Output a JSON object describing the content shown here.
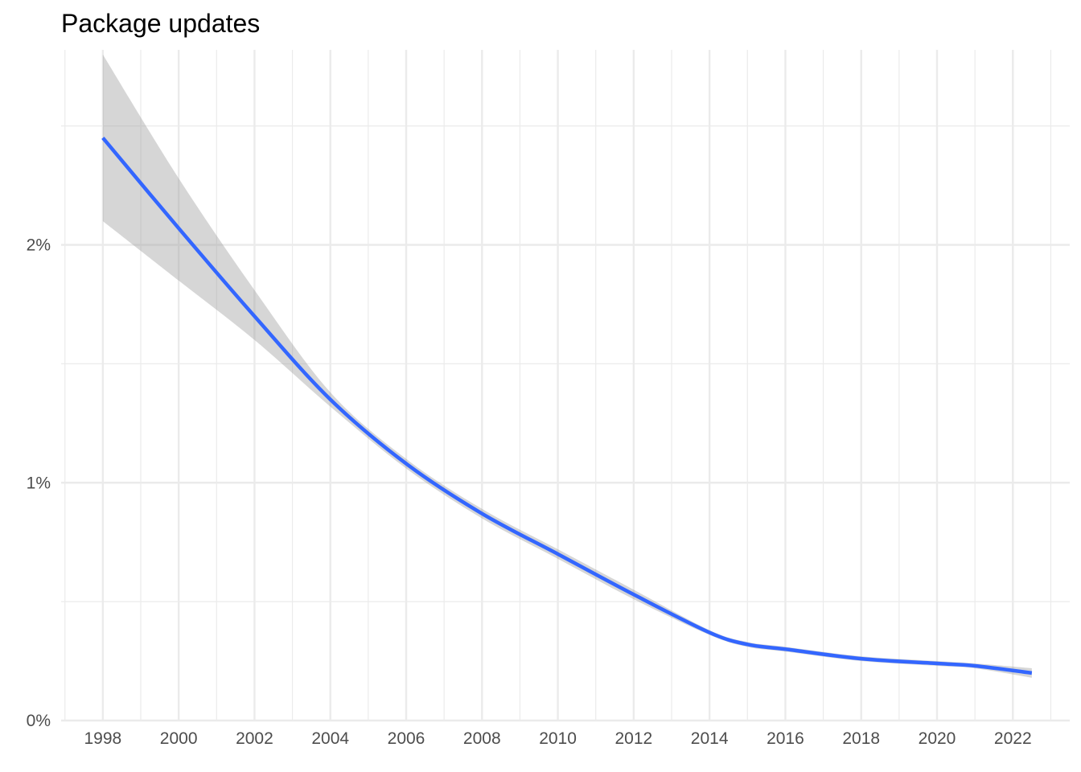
{
  "chart_data": {
    "type": "line",
    "title": "Package updates",
    "xlabel": "",
    "ylabel": "",
    "x_range": [
      1996.9,
      2023.5
    ],
    "y_range": [
      0,
      2.82
    ],
    "x_ticks": [
      1998,
      2000,
      2002,
      2004,
      2006,
      2008,
      2010,
      2012,
      2014,
      2016,
      2018,
      2020,
      2022
    ],
    "y_ticks": [
      0,
      1,
      2
    ],
    "y_tick_labels": [
      "0%",
      "1%",
      "2%"
    ],
    "y_minor_ticks": [
      0.5,
      1.5,
      2.5
    ],
    "grid": true,
    "legend": "none",
    "colors": {
      "line": "#3366FF",
      "band": "#999999",
      "grid": "#ebebeb"
    },
    "series": [
      {
        "x": [
          1998,
          2000,
          2002,
          2004,
          2006,
          2008,
          2010,
          2012,
          2014,
          2015,
          2016,
          2018,
          2020,
          2021,
          2022.5
        ],
        "y": [
          2.45,
          2.07,
          1.7,
          1.35,
          1.08,
          0.87,
          0.7,
          0.53,
          0.37,
          0.32,
          0.3,
          0.26,
          0.24,
          0.23,
          0.2
        ],
        "lower": [
          2.1,
          1.85,
          1.6,
          1.32,
          1.06,
          0.85,
          0.68,
          0.51,
          0.36,
          0.31,
          0.29,
          0.25,
          0.23,
          0.22,
          0.18
        ],
        "upper": [
          2.8,
          2.28,
          1.81,
          1.38,
          1.1,
          0.89,
          0.72,
          0.55,
          0.38,
          0.33,
          0.31,
          0.27,
          0.25,
          0.24,
          0.22
        ]
      }
    ]
  }
}
